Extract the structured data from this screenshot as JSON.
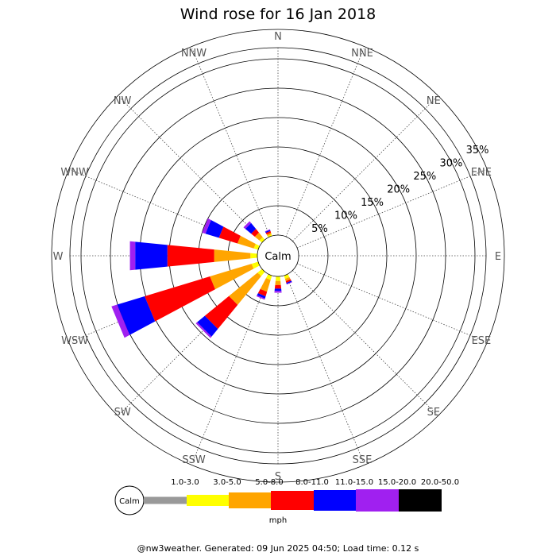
{
  "chart_data": {
    "type": "windrose",
    "title": "Wind rose for 16 Jan 2018",
    "directions": [
      "N",
      "NNE",
      "NE",
      "ENE",
      "E",
      "ESE",
      "SE",
      "SSE",
      "S",
      "SSW",
      "SW",
      "WSW",
      "W",
      "WNW",
      "NW",
      "NNW"
    ],
    "rings_percent": [
      5,
      10,
      15,
      20,
      25,
      30,
      35
    ],
    "ring_labels": [
      "5%",
      "10%",
      "15%",
      "20%",
      "25%",
      "30%",
      "35%"
    ],
    "calm_label": "Calm",
    "unit": "mph",
    "speed_bins": [
      {
        "label": "1.0-3.0",
        "color": "#999999"
      },
      {
        "label": "3.0-5.0",
        "color": "#ffff00"
      },
      {
        "label": "5.0-8.0",
        "color": "#ffa500"
      },
      {
        "label": "8.0-11.0",
        "color": "#ff0000"
      },
      {
        "label": "11.0-15.0",
        "color": "#0000ff"
      },
      {
        "label": "15.0-20.0",
        "color": "#a020f0"
      },
      {
        "label": "20.0-50.0",
        "color": "#000000"
      }
    ],
    "series": [
      {
        "direction": "N",
        "values": [
          0.0,
          0.0,
          0.0,
          0.0,
          0.0,
          0.0,
          0.0
        ]
      },
      {
        "direction": "NNE",
        "values": [
          0.0,
          0.0,
          0.0,
          0.0,
          0.0,
          0.0,
          0.0
        ]
      },
      {
        "direction": "NE",
        "values": [
          0.0,
          0.0,
          0.0,
          0.0,
          0.0,
          0.0,
          0.0
        ]
      },
      {
        "direction": "ENE",
        "values": [
          0.0,
          0.0,
          0.0,
          0.0,
          0.0,
          0.0,
          0.0
        ]
      },
      {
        "direction": "E",
        "values": [
          0.0,
          0.0,
          0.0,
          0.0,
          0.0,
          0.0,
          0.0
        ]
      },
      {
        "direction": "ESE",
        "values": [
          0.0,
          0.0,
          0.0,
          0.0,
          0.0,
          0.0,
          0.0
        ]
      },
      {
        "direction": "SE",
        "values": [
          0.0,
          0.0,
          0.0,
          0.0,
          0.0,
          0.0,
          0.0
        ]
      },
      {
        "direction": "SSE",
        "values": [
          0.0,
          0.6,
          0.4,
          0.3,
          0.2,
          0.1,
          0.0
        ]
      },
      {
        "direction": "S",
        "values": [
          0.0,
          0.8,
          0.7,
          0.6,
          0.4,
          0.3,
          0.0
        ]
      },
      {
        "direction": "SSW",
        "values": [
          0.0,
          0.8,
          2.1,
          0.8,
          0.4,
          0.2,
          0.0
        ]
      },
      {
        "direction": "SW",
        "values": [
          0.0,
          1.0,
          6.3,
          5.3,
          1.7,
          0.3,
          0.0
        ]
      },
      {
        "direction": "WSW",
        "values": [
          0.0,
          1.2,
          7.4,
          11.6,
          4.9,
          1.0,
          0.0
        ]
      },
      {
        "direction": "W",
        "values": [
          0.0,
          1.2,
          6.2,
          8.0,
          5.5,
          0.9,
          0.0
        ]
      },
      {
        "direction": "WNW",
        "values": [
          0.0,
          0.8,
          2.9,
          3.3,
          2.4,
          0.6,
          0.0
        ]
      },
      {
        "direction": "NW",
        "values": [
          0.0,
          0.6,
          1.0,
          0.8,
          1.3,
          0.4,
          0.0
        ]
      },
      {
        "direction": "NNW",
        "values": [
          0.0,
          0.3,
          0.3,
          0.3,
          0.2,
          0.1,
          0.0
        ]
      }
    ],
    "grid": true
  },
  "footer": "@nw3weather. Generated: 09 Jun 2025 04:50; Load time: 0.12 s"
}
